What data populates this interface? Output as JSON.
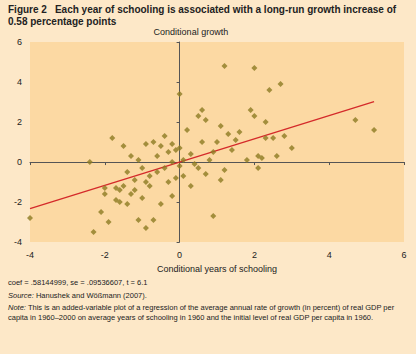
{
  "chart_data": {
    "type": "scatter",
    "figure_label": "Figure 2",
    "title": "Each year of schooling is associated with a long-run growth increase of 0.58 percentage points",
    "ylabel": "Conditional growth",
    "xlabel": "Conditional years of schooling",
    "stats": "coef = .58144999, se = .09536607, t = 6.1",
    "source": "Source: Hanushek and Wößmann (2007).",
    "note": "Note: This is an added-variable plot of a regression of the average annual rate of growth (in percent) of real GDP per capita in 1960–2000 on average years of schooling in 1960 and the initial level of real GDP per capita in 1960.",
    "xlim": [
      -4,
      6
    ],
    "xticks": [
      -4,
      -2,
      0,
      2,
      4,
      6
    ],
    "ylim": [
      -4,
      6
    ],
    "yticks": [
      -4,
      -2,
      0,
      2,
      4,
      6
    ],
    "grid": false,
    "series": [
      {
        "type": "scatter",
        "color": "#8c7a22",
        "marker": "diamond",
        "x": [
          -4.0,
          -2.4,
          -2.3,
          -2.1,
          -2.0,
          -1.9,
          -1.8,
          -1.7,
          -1.6,
          -1.6,
          -1.5,
          -1.5,
          -1.4,
          -1.4,
          -1.3,
          -1.3,
          -1.2,
          -1.2,
          -1.1,
          -1.1,
          -1.0,
          -1.0,
          -0.9,
          -0.9,
          -0.8,
          -0.8,
          -0.7,
          -0.7,
          -0.6,
          -0.6,
          -0.5,
          -0.5,
          -0.4,
          -0.4,
          -0.3,
          -0.3,
          -0.2,
          -0.2,
          -0.1,
          -0.1,
          0.0,
          0.0,
          0.0,
          0.1,
          0.1,
          0.2,
          0.3,
          0.4,
          0.5,
          0.5,
          0.6,
          0.6,
          0.7,
          0.7,
          0.8,
          0.9,
          0.9,
          1.0,
          1.1,
          1.2,
          1.2,
          1.3,
          1.4,
          1.5,
          1.6,
          1.8,
          1.9,
          2.0,
          2.0,
          2.1,
          2.1,
          2.2,
          2.3,
          2.3,
          2.4,
          2.5,
          2.6,
          2.7,
          2.8,
          3.0,
          4.7,
          5.2,
          -0.2,
          -1.7,
          -2.0,
          0.3,
          -0.9,
          1.1
        ],
        "values": [
          -2.8,
          0.0,
          -3.5,
          -2.5,
          -1.6,
          -3.0,
          1.2,
          -1.3,
          -2.0,
          -1.4,
          -1.2,
          0.8,
          -2.1,
          -0.5,
          0.3,
          -1.6,
          -0.9,
          -1.4,
          -2.9,
          0.1,
          -0.3,
          -1.8,
          -3.3,
          0.9,
          -0.7,
          -1.2,
          -2.9,
          1.0,
          0.3,
          -0.5,
          0.8,
          -2.1,
          -0.3,
          1.3,
          0.5,
          -1.0,
          0.0,
          0.9,
          -0.8,
          0.6,
          3.4,
          0.7,
          -0.2,
          0.1,
          -0.7,
          1.6,
          -1.2,
          -0.1,
          2.3,
          -0.3,
          2.6,
          1.0,
          -0.6,
          2.1,
          0.1,
          -2.7,
          0.5,
          1.0,
          -0.9,
          4.8,
          -0.4,
          1.4,
          0.6,
          1.1,
          1.5,
          0.1,
          2.6,
          4.7,
          2.3,
          0.3,
          -0.3,
          0.2,
          2.0,
          1.2,
          3.6,
          1.2,
          0.3,
          3.9,
          1.3,
          0.7,
          2.1,
          1.6,
          -1.7,
          -1.9,
          -1.3,
          0.4,
          -1.0,
          1.8
        ]
      },
      {
        "type": "line",
        "color": "#d42a2a",
        "line_style": "solid",
        "x": [
          -4.0,
          5.2
        ],
        "values": [
          -2.33,
          3.02
        ]
      }
    ]
  }
}
